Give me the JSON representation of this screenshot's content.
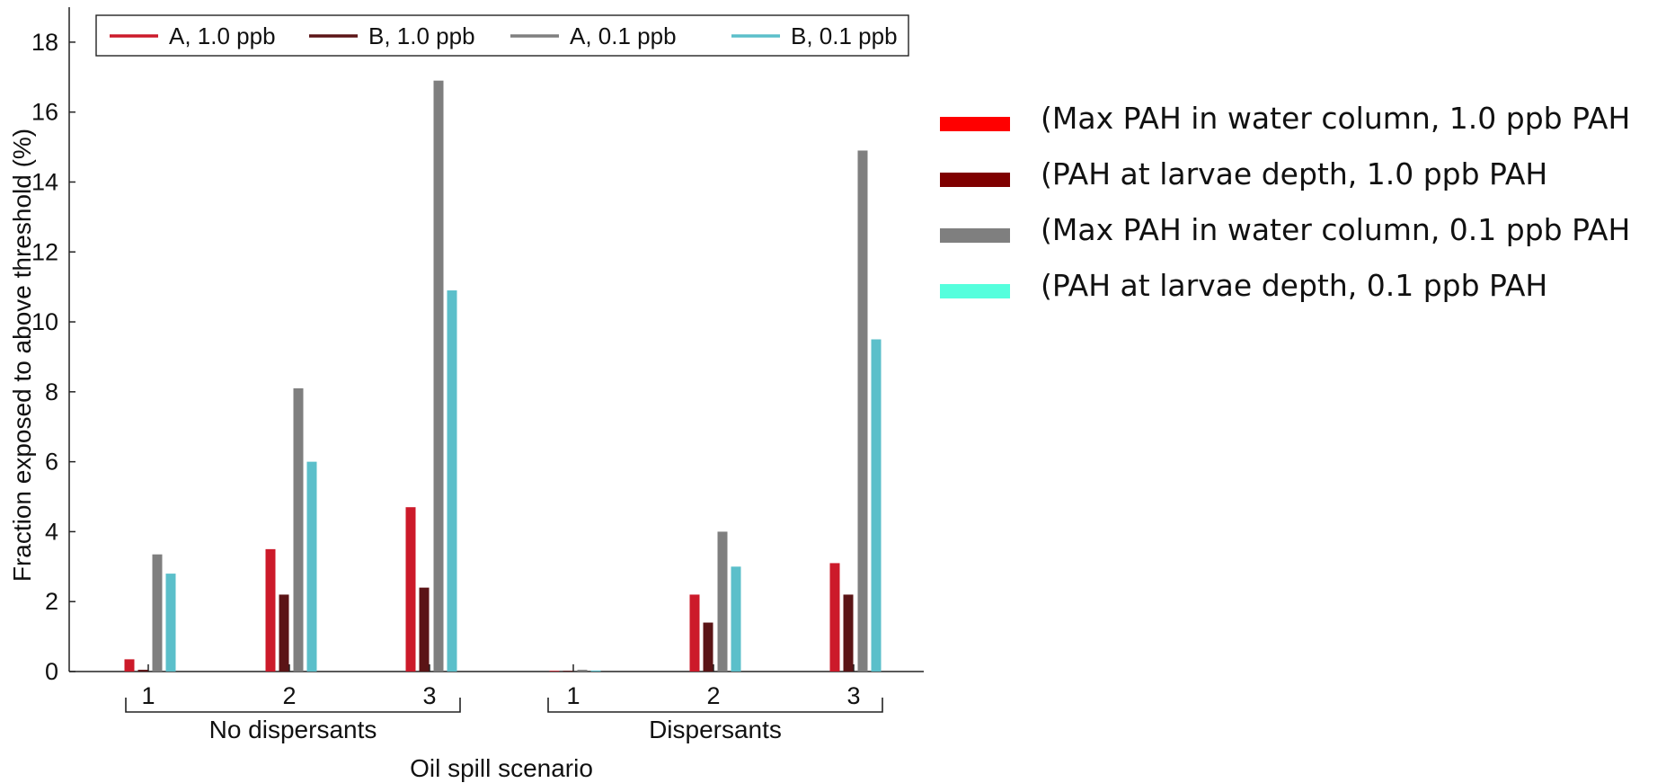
{
  "chart_data": {
    "type": "bar",
    "xlabel": "Oil spill scenario",
    "ylabel": "Fraction exposed to above threshold (%)",
    "ylim": [
      0,
      19
    ],
    "yticks": [
      0,
      2,
      4,
      6,
      8,
      10,
      12,
      14,
      16,
      18
    ],
    "groups": [
      {
        "label": "No dispersants",
        "categories": [
          "1",
          "2",
          "3"
        ]
      },
      {
        "label": "Dispersants",
        "categories": [
          "1",
          "2",
          "3"
        ]
      }
    ],
    "categories": [
      "1",
      "2",
      "3",
      "1",
      "2",
      "3"
    ],
    "series": [
      {
        "name": "A, 1.0 ppb",
        "color": "#cc1a2a",
        "values": [
          0.35,
          3.5,
          4.7,
          0.02,
          2.2,
          3.1
        ]
      },
      {
        "name": "B, 1.0 ppb",
        "color": "#5b1416",
        "values": [
          0.05,
          2.2,
          2.4,
          0.01,
          1.4,
          2.2
        ]
      },
      {
        "name": "A, 0.1 ppb",
        "color": "#7f7f7f",
        "values": [
          3.35,
          8.1,
          16.9,
          0.05,
          4.0,
          14.9
        ]
      },
      {
        "name": "B, 0.1 ppb",
        "color": "#5bbfca",
        "values": [
          2.8,
          6.0,
          10.9,
          0.03,
          3.0,
          9.5
        ]
      }
    ],
    "legend_position": "top",
    "grid": false
  },
  "side_legend": [
    {
      "label": "(Max PAH in water column, 1.0 ppb PAH",
      "color": "#ff0000"
    },
    {
      "label": "(PAH at larvae depth, 1.0 ppb PAH",
      "color": "#7f0000"
    },
    {
      "label": "(Max PAH in water column, 0.1 ppb PAH",
      "color": "#7f7f7f"
    },
    {
      "label": "(PAH at larvae depth, 0.1 ppb PAH",
      "color": "#55ffdd"
    }
  ]
}
